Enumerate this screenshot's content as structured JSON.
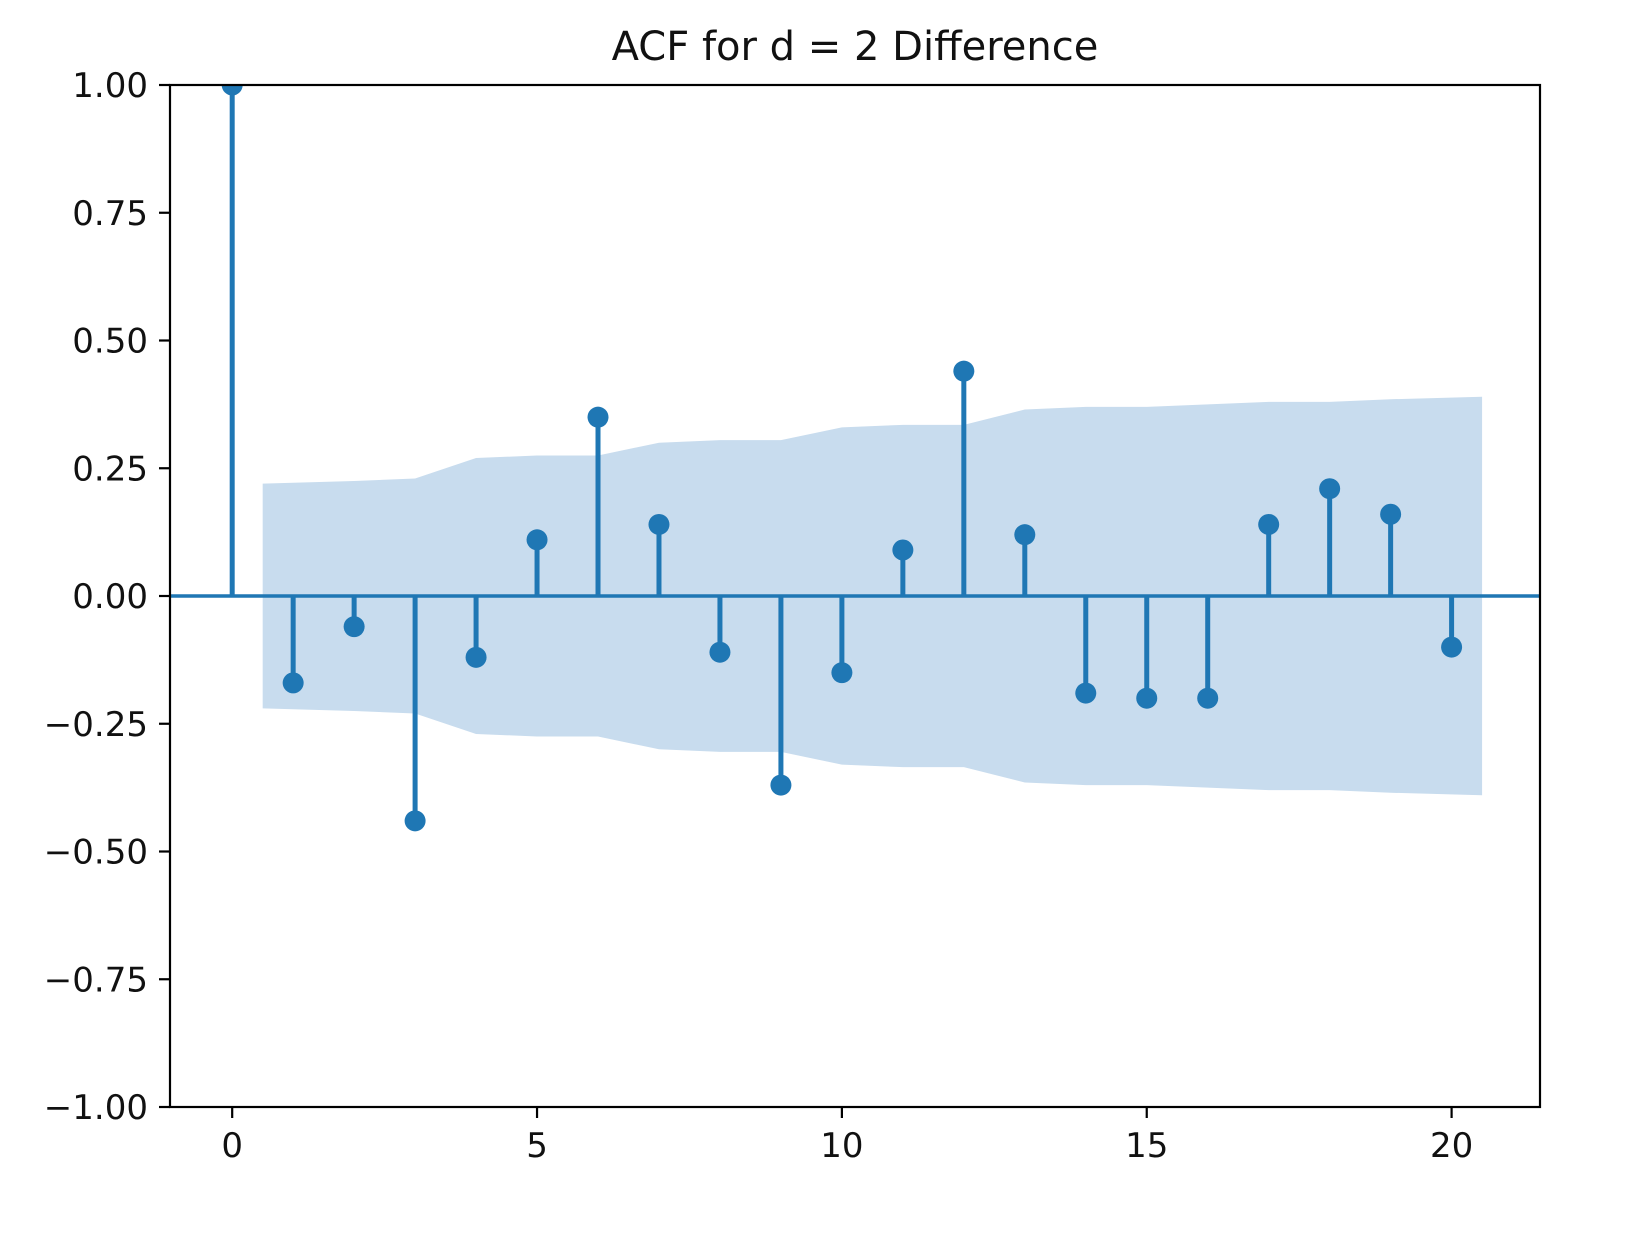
{
  "chart_data": {
    "type": "stem",
    "title": "ACF for d = 2 Difference",
    "xlabel": "",
    "ylabel": "",
    "x": [
      0,
      1,
      2,
      3,
      4,
      5,
      6,
      7,
      8,
      9,
      10,
      11,
      12,
      13,
      14,
      15,
      16,
      17,
      18,
      19,
      20
    ],
    "values": [
      1.0,
      -0.17,
      -0.06,
      -0.44,
      -0.12,
      0.11,
      0.35,
      0.14,
      -0.11,
      -0.37,
      -0.15,
      0.09,
      0.44,
      0.12,
      -0.19,
      -0.2,
      -0.2,
      0.14,
      0.21,
      0.16,
      -0.1
    ],
    "conf_band": {
      "x": [
        0.5,
        2,
        3,
        4,
        5,
        6,
        7,
        8,
        9,
        10,
        11,
        12,
        13,
        14,
        15,
        16,
        17,
        18,
        19,
        20.5
      ],
      "upper": [
        0.22,
        0.225,
        0.23,
        0.27,
        0.275,
        0.275,
        0.3,
        0.305,
        0.305,
        0.33,
        0.335,
        0.335,
        0.365,
        0.37,
        0.37,
        0.375,
        0.38,
        0.38,
        0.385,
        0.39
      ],
      "lower": [
        -0.22,
        -0.225,
        -0.23,
        -0.27,
        -0.275,
        -0.275,
        -0.3,
        -0.305,
        -0.305,
        -0.33,
        -0.335,
        -0.335,
        -0.365,
        -0.37,
        -0.37,
        -0.375,
        -0.38,
        -0.38,
        -0.385,
        -0.39
      ]
    },
    "xlim": [
      -1.02,
      21.45
    ],
    "ylim": [
      -1.0,
      1.0
    ],
    "xticks": [
      0,
      5,
      10,
      15,
      20
    ],
    "xtick_labels": [
      "0",
      "5",
      "10",
      "15",
      "20"
    ],
    "yticks": [
      1.0,
      0.75,
      0.5,
      0.25,
      0.0,
      -0.25,
      -0.5,
      -0.75,
      -1.0
    ],
    "ytick_labels": [
      "1.00",
      "0.75",
      "0.50",
      "0.25",
      "0.00",
      "−0.25",
      "−0.50",
      "−0.75",
      "−1.00"
    ],
    "grid": false,
    "legend": "none",
    "colors": {
      "stem": "#1f77b4",
      "marker": "#1f77b4",
      "band": "#c8dcee",
      "spine": "#000000",
      "text": "#111111"
    }
  }
}
